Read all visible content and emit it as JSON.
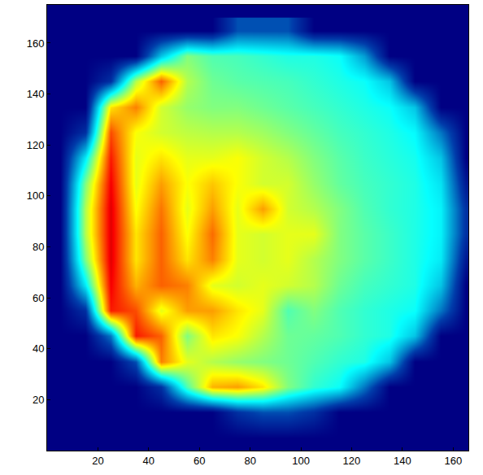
{
  "chart_data": {
    "type": "heatmap",
    "x": [
      5,
      15,
      25,
      35,
      45,
      55,
      65,
      75,
      85,
      95,
      105,
      115,
      125,
      135,
      145,
      155,
      165
    ],
    "y": [
      5,
      15,
      25,
      35,
      45,
      55,
      65,
      75,
      85,
      95,
      105,
      115,
      125,
      135,
      145,
      155,
      165
    ],
    "z": [
      [
        0,
        0,
        0,
        0,
        0,
        0,
        0,
        0,
        0,
        0,
        0,
        0,
        0,
        0,
        0,
        0,
        0
      ],
      [
        0,
        0,
        0,
        0,
        0,
        0,
        0,
        0.1,
        0.15,
        0.15,
        0.1,
        0,
        0,
        0,
        0,
        0,
        0
      ],
      [
        0,
        0,
        0,
        0,
        0.1,
        0.45,
        0.7,
        0.72,
        0.65,
        0.5,
        0.42,
        0.38,
        0.2,
        0,
        0,
        0,
        0
      ],
      [
        0,
        0,
        0,
        0.15,
        0.75,
        0.6,
        0.55,
        0.52,
        0.5,
        0.48,
        0.45,
        0.42,
        0.4,
        0.3,
        0,
        0,
        0
      ],
      [
        0,
        0,
        0.2,
        0.85,
        0.78,
        0.5,
        0.65,
        0.62,
        0.55,
        0.48,
        0.47,
        0.45,
        0.42,
        0.4,
        0.3,
        0,
        0
      ],
      [
        0,
        0.1,
        0.85,
        0.8,
        0.6,
        0.72,
        0.72,
        0.65,
        0.6,
        0.45,
        0.5,
        0.45,
        0.42,
        0.4,
        0.38,
        0.2,
        0
      ],
      [
        0,
        0.35,
        0.88,
        0.7,
        0.78,
        0.75,
        0.6,
        0.58,
        0.6,
        0.58,
        0.55,
        0.48,
        0.44,
        0.42,
        0.4,
        0.3,
        0
      ],
      [
        0,
        0.5,
        0.9,
        0.65,
        0.78,
        0.65,
        0.75,
        0.6,
        0.58,
        0.6,
        0.55,
        0.5,
        0.46,
        0.43,
        0.4,
        0.35,
        0.05
      ],
      [
        0,
        0.55,
        0.9,
        0.65,
        0.78,
        0.62,
        0.77,
        0.6,
        0.58,
        0.6,
        0.6,
        0.5,
        0.46,
        0.43,
        0.4,
        0.36,
        0.1
      ],
      [
        0,
        0.55,
        0.9,
        0.62,
        0.76,
        0.6,
        0.72,
        0.6,
        0.72,
        0.58,
        0.55,
        0.5,
        0.45,
        0.42,
        0.4,
        0.36,
        0.1
      ],
      [
        0,
        0.5,
        0.88,
        0.6,
        0.72,
        0.62,
        0.68,
        0.62,
        0.58,
        0.58,
        0.52,
        0.47,
        0.44,
        0.42,
        0.4,
        0.34,
        0.05
      ],
      [
        0,
        0.35,
        0.85,
        0.6,
        0.65,
        0.6,
        0.6,
        0.62,
        0.58,
        0.55,
        0.5,
        0.46,
        0.43,
        0.41,
        0.39,
        0.3,
        0
      ],
      [
        0,
        0.1,
        0.8,
        0.62,
        0.58,
        0.56,
        0.55,
        0.55,
        0.53,
        0.5,
        0.47,
        0.44,
        0.42,
        0.4,
        0.37,
        0.2,
        0
      ],
      [
        0,
        0,
        0.65,
        0.75,
        0.58,
        0.52,
        0.5,
        0.5,
        0.48,
        0.46,
        0.44,
        0.42,
        0.4,
        0.38,
        0.3,
        0,
        0
      ],
      [
        0,
        0,
        0.1,
        0.55,
        0.78,
        0.55,
        0.48,
        0.46,
        0.45,
        0.44,
        0.42,
        0.4,
        0.38,
        0.3,
        0,
        0,
        0
      ],
      [
        0,
        0,
        0,
        0,
        0.3,
        0.5,
        0.45,
        0.44,
        0.42,
        0.4,
        0.4,
        0.38,
        0.25,
        0,
        0,
        0,
        0
      ],
      [
        0,
        0,
        0,
        0,
        0,
        0,
        0,
        0.15,
        0.15,
        0.15,
        0,
        0,
        0,
        0,
        0,
        0,
        0
      ]
    ],
    "zlim": [
      0,
      1
    ],
    "xlim": [
      0,
      166
    ],
    "ylim": [
      0,
      175
    ],
    "xticks": [
      20,
      40,
      60,
      80,
      100,
      120,
      140,
      160
    ],
    "yticks": [
      20,
      40,
      60,
      80,
      100,
      120,
      140,
      160
    ],
    "grid": false
  }
}
